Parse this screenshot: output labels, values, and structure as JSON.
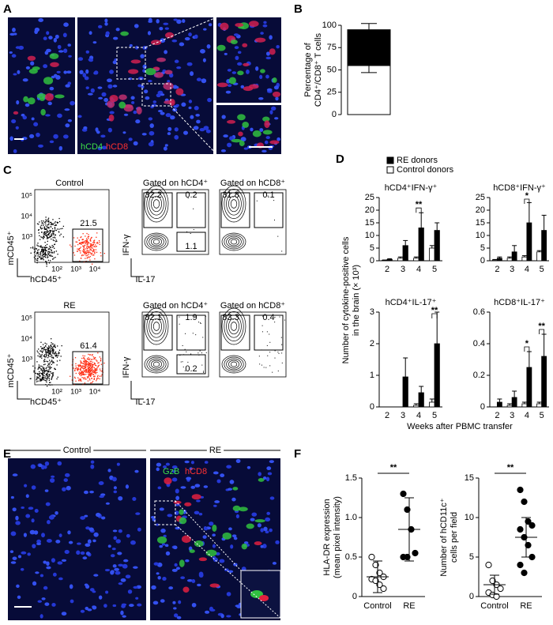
{
  "panel_labels": [
    "A",
    "B",
    "C",
    "D",
    "E",
    "F"
  ],
  "panel_a": {
    "stains": [
      "hCD4",
      "hCD8"
    ]
  },
  "panel_c": {
    "x_label": "hCD45⁺",
    "y_label": "mCD45⁺",
    "x_ticks": [
      "10²",
      "10³",
      "10⁴"
    ],
    "y_ticks": [
      "10⁵",
      "10⁴",
      "10³"
    ],
    "gate_x_label": "IL-17",
    "gate_y_label": "IFN-γ",
    "rows": [
      {
        "title": "Control",
        "gate": 21.5,
        "gates": [
          {
            "title": "Gated on hCD4⁺",
            "quadrants": [
              32.2,
              0.2,
              1.1
            ]
          },
          {
            "title": "Gated on hCD8⁺",
            "quadrants": [
              31.8,
              0.1
            ]
          }
        ]
      },
      {
        "title": "RE",
        "gate": 61.4,
        "gates": [
          {
            "title": "Gated on hCD4⁺",
            "quadrants": [
              82.1,
              1.9,
              0.2
            ]
          },
          {
            "title": "Gated on hCD8⁺",
            "quadrants": [
              83.3,
              0.4
            ]
          }
        ]
      }
    ]
  },
  "panel_d": {
    "y_label": [
      "Number of cytokine-positive cells",
      "in the brain (× 10³)"
    ],
    "x_label": "Weeks after PBMC transfer"
  },
  "panel_e": {
    "groups": [
      "Control",
      "RE"
    ],
    "stains": [
      "GzB",
      "hCD8"
    ]
  },
  "chart_data": [
    {
      "type": "stackedbar",
      "y_label": [
        "Percentage of",
        "CD4⁺/CD8⁺ T cells"
      ],
      "ylim": [
        0,
        100
      ],
      "yticks": [
        0,
        25,
        50,
        75,
        100
      ],
      "series": [
        {
          "color": "#ffffff",
          "values": [
            55
          ],
          "errors": [
            8
          ]
        },
        {
          "color": "#000000",
          "values": [
            40
          ],
          "errors": [
            7
          ]
        }
      ]
    },
    {
      "type": "bar",
      "title": "hCD4⁺IFN-γ⁺",
      "categories": [
        "2",
        "3",
        "4",
        "5"
      ],
      "ylim": [
        0,
        25
      ],
      "yticks": [
        0,
        5,
        10,
        15,
        20,
        25
      ],
      "series": [
        {
          "name": "RE donors",
          "color": "#000000",
          "values": [
            0.5,
            6,
            13,
            12
          ],
          "errors": [
            0.3,
            2,
            6,
            3
          ]
        },
        {
          "name": "Control donors",
          "color": "#ffffff",
          "values": [
            0.2,
            1,
            1,
            5
          ],
          "errors": [
            0.1,
            0.5,
            0.5,
            1
          ]
        }
      ],
      "annotations": [
        {
          "x": "4",
          "text": "**"
        }
      ]
    },
    {
      "type": "bar",
      "title": "hCD8⁺IFN-γ⁺",
      "categories": [
        "2",
        "3",
        "4",
        "5"
      ],
      "ylim": [
        0,
        25
      ],
      "yticks": [
        0,
        5,
        10,
        15,
        20,
        25
      ],
      "series": [
        {
          "name": "RE donors",
          "color": "#000000",
          "values": [
            1,
            3.5,
            15,
            12
          ],
          "errors": [
            0.5,
            2.5,
            8,
            6
          ]
        },
        {
          "name": "Control donors",
          "color": "#ffffff",
          "values": [
            0.3,
            1,
            1.5,
            3.5
          ],
          "errors": [
            0.2,
            0.5,
            0.5,
            0.5
          ]
        }
      ],
      "annotations": [
        {
          "x": "4",
          "text": "*"
        }
      ]
    },
    {
      "type": "bar",
      "title": "hCD4⁺IL-17⁺",
      "categories": [
        "2",
        "3",
        "4",
        "5"
      ],
      "ylim": [
        0,
        3
      ],
      "yticks": [
        0,
        1,
        2,
        3
      ],
      "series": [
        {
          "name": "RE donors",
          "color": "#000000",
          "values": [
            0,
            0.95,
            0.45,
            2.0
          ],
          "errors": [
            0,
            0.6,
            0.2,
            1.0
          ]
        },
        {
          "name": "Control donors",
          "color": "#ffffff",
          "values": [
            0,
            0,
            0.05,
            0.15
          ],
          "errors": [
            0,
            0,
            0.05,
            0.1
          ]
        }
      ],
      "annotations": [
        {
          "x": "5",
          "text": "**"
        }
      ]
    },
    {
      "type": "bar",
      "title": "hCD8⁺IL-17⁺",
      "categories": [
        "2",
        "3",
        "4",
        "5"
      ],
      "ylim": [
        0,
        0.6
      ],
      "yticks": [
        0,
        0.2,
        0.4,
        0.6
      ],
      "series": [
        {
          "name": "RE donors",
          "color": "#000000",
          "values": [
            0.03,
            0.06,
            0.25,
            0.32
          ],
          "errors": [
            0.02,
            0.04,
            0.1,
            0.14
          ]
        },
        {
          "name": "Control donors",
          "color": "#ffffff",
          "values": [
            0,
            0.01,
            0.02,
            0.02
          ],
          "errors": [
            0,
            0.01,
            0.01,
            0.01
          ]
        }
      ],
      "annotations": [
        {
          "x": "4",
          "text": "*"
        },
        {
          "x": "5",
          "text": "**"
        }
      ]
    },
    {
      "type": "dotplot",
      "y_label": [
        "HLA-DR expression",
        "(mean pixel intensity)"
      ],
      "categories": [
        "Control",
        "RE"
      ],
      "ylim": [
        0,
        1.5
      ],
      "yticks": [
        0,
        0.5,
        {
          "value": 1,
          "label": "1.0"
        },
        1.5
      ],
      "fills": [
        "#ffffff",
        "#000000"
      ],
      "values": [
        [
          0.5,
          0.4,
          0.3,
          0.25,
          0.22,
          0.2,
          0.15,
          0.1
        ],
        [
          1.3,
          1.1,
          0.85,
          0.55,
          0.5,
          0.5
        ]
      ],
      "means": [
        0.25,
        0.85
      ],
      "errors": [
        0.2,
        0.4
      ],
      "annotation": "**"
    },
    {
      "type": "dotplot",
      "y_label": [
        "Number of hCD11c⁺",
        "cells per field"
      ],
      "categories": [
        "Control",
        "RE"
      ],
      "ylim": [
        0,
        15
      ],
      "yticks": [
        0,
        5,
        10,
        15
      ],
      "fills": [
        "#ffffff",
        "#000000"
      ],
      "values": [
        [
          4,
          2,
          1.5,
          1,
          0.5,
          0.2,
          0
        ],
        [
          13.5,
          12,
          9.5,
          9,
          8.5,
          7.5,
          6.5,
          5,
          4,
          3
        ]
      ],
      "means": [
        1.5,
        7.5
      ],
      "errors": [
        1.2,
        2.5
      ],
      "annotation": "**"
    }
  ]
}
